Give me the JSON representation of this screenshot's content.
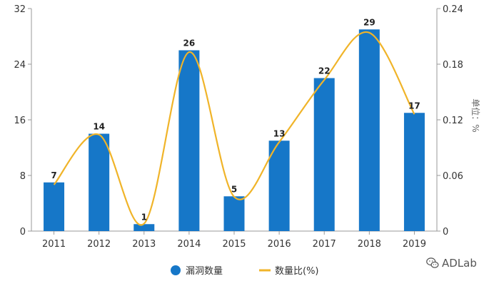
{
  "chart_data": {
    "type": "bar",
    "categories": [
      "2011",
      "2012",
      "2013",
      "2014",
      "2015",
      "2016",
      "2017",
      "2018",
      "2019"
    ],
    "series": [
      {
        "name": "漏洞数量",
        "type": "bar",
        "axis": "left",
        "color": "#1677c8",
        "values": [
          7,
          14,
          1,
          26,
          5,
          13,
          22,
          29,
          17
        ]
      },
      {
        "name": "数量比(%)",
        "type": "line",
        "axis": "right",
        "color": "#f0b429",
        "values": [
          0.05,
          0.104,
          0.008,
          0.193,
          0.037,
          0.096,
          0.163,
          0.214,
          0.126
        ]
      }
    ],
    "y_left": {
      "min": 0,
      "max": 32,
      "ticks": [
        "0",
        "8",
        "16",
        "24",
        "32"
      ]
    },
    "y_right": {
      "min": 0,
      "max": 0.24,
      "ticks": [
        "0",
        "0.06",
        "0.12",
        "0.18",
        "0.24"
      ],
      "label": "单位：%"
    },
    "data_labels": [
      "7",
      "14",
      "1",
      "26",
      "5",
      "13",
      "22",
      "29",
      "17"
    ],
    "grid": false,
    "legend": {
      "placement": "bottom",
      "items": [
        "漏洞数量",
        "数量比(%)"
      ]
    }
  },
  "watermark": {
    "text": "ADLab",
    "icon": "wechat-icon"
  }
}
